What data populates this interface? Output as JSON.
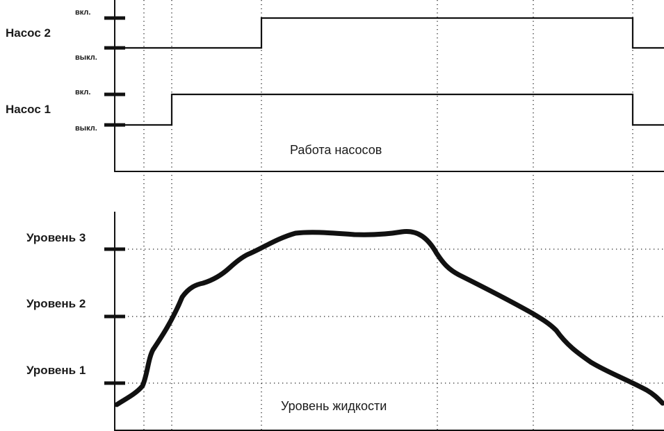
{
  "pumps": {
    "caption": "Работа насосов",
    "pump2": {
      "name": "Насос 2",
      "on_label": "вкл.",
      "off_label": "выкл."
    },
    "pump1": {
      "name": "Насос 1",
      "on_label": "вкл.",
      "off_label": "выкл."
    }
  },
  "levels": {
    "caption": "Уровень жидкости",
    "level3": "Уровень 3",
    "level2": "Уровень 2",
    "level1": "Уровень 1"
  },
  "colors": {
    "line": "#111111",
    "background": "#ffffff"
  }
}
